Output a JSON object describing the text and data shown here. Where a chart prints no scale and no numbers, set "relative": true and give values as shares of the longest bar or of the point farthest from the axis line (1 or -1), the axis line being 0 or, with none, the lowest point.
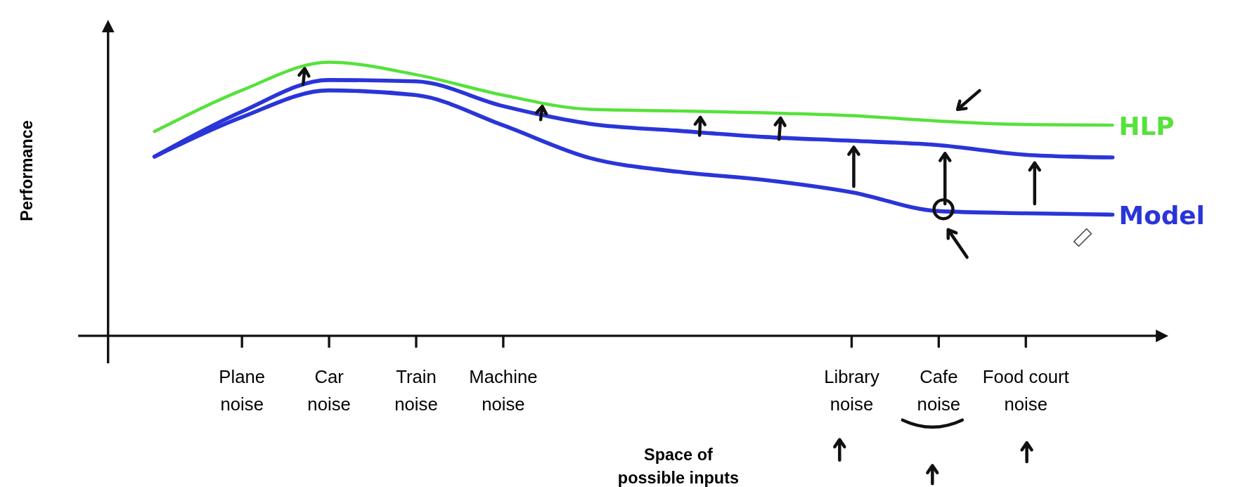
{
  "chart_data": {
    "type": "line",
    "relative": true,
    "xlabel": "Space of possible inputs",
    "ylabel": "Performance",
    "categories": [
      null,
      "Plane noise",
      "Car noise",
      "Train noise",
      "Machine noise",
      null,
      null,
      null,
      "Library noise",
      "Cafe noise",
      "Food court noise",
      null
    ],
    "marker": "none",
    "series": [
      {
        "name": "HLP",
        "color": "#55e23a",
        "values": [
          0.747,
          0.897,
          1,
          0.955,
          0.88,
          0.828,
          0.822,
          0.815,
          0.805,
          0.785,
          0.772,
          0.77
        ]
      },
      {
        "color": "#2a35d8",
        "values": [
          0.655,
          0.819,
          0.935,
          0.93,
          0.84,
          0.775,
          0.75,
          0.727,
          0.713,
          0.697,
          0.662,
          0.652
        ]
      },
      {
        "name": "Model",
        "color": "#2a35d8",
        "values": [
          0.655,
          0.799,
          0.897,
          0.88,
          0.77,
          0.65,
          0.6,
          0.57,
          0.525,
          0.456,
          0.448,
          0.443
        ]
      }
    ]
  }
}
